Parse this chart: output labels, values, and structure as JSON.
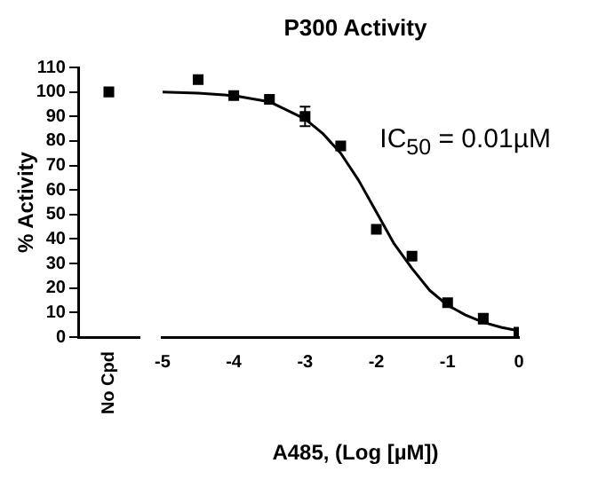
{
  "chart_data": [
    {
      "type": "scatter",
      "categories": [
        "No Cpd"
      ],
      "values": [
        100
      ],
      "color": "#000000",
      "ylabel": "% Activity",
      "ylim": [
        0,
        110
      ],
      "yticks": [
        0,
        10,
        20,
        30,
        40,
        50,
        60,
        70,
        80,
        90,
        100,
        110
      ],
      "marker": "square",
      "grid": false
    },
    {
      "type": "scatter",
      "title": "P300 Activity",
      "xlabel": "A485, (Log [µM])",
      "annotations": [
        "IC$_{50}$ = 0.01µM"
      ],
      "xlim": [
        -5,
        0
      ],
      "xticks": [
        -5,
        -4,
        -3,
        -2,
        -1,
        0
      ],
      "ylim": [
        0,
        110
      ],
      "tick_labels": "x",
      "grid": false,
      "marker": "square",
      "series": [
        {
          "type": "scatter",
          "color": "#000000",
          "x": [
            -4.5,
            -4,
            -3.5,
            -3,
            -2.5,
            -2,
            -1.5,
            -1,
            -0.5,
            0
          ],
          "values": [
            105,
            98.5,
            97,
            90,
            78,
            44,
            33,
            14,
            7.5,
            2
          ],
          "errors": [
            null,
            null,
            null,
            4,
            null,
            null,
            null,
            null,
            2,
            null
          ]
        },
        {
          "type": "line",
          "color": "#000000",
          "marker": "none",
          "x": [
            -5,
            -4.5,
            -4,
            -3.5,
            -3,
            -2.75,
            -2.5,
            -2.25,
            -2,
            -1.75,
            -1.5,
            -1.25,
            -1,
            -0.75,
            -0.5,
            -0.25,
            0
          ],
          "values": [
            100,
            99.5,
            98.5,
            96,
            89,
            83,
            75,
            64,
            51,
            38,
            28,
            19,
            13,
            9,
            6,
            4,
            2.5
          ]
        }
      ]
    }
  ]
}
